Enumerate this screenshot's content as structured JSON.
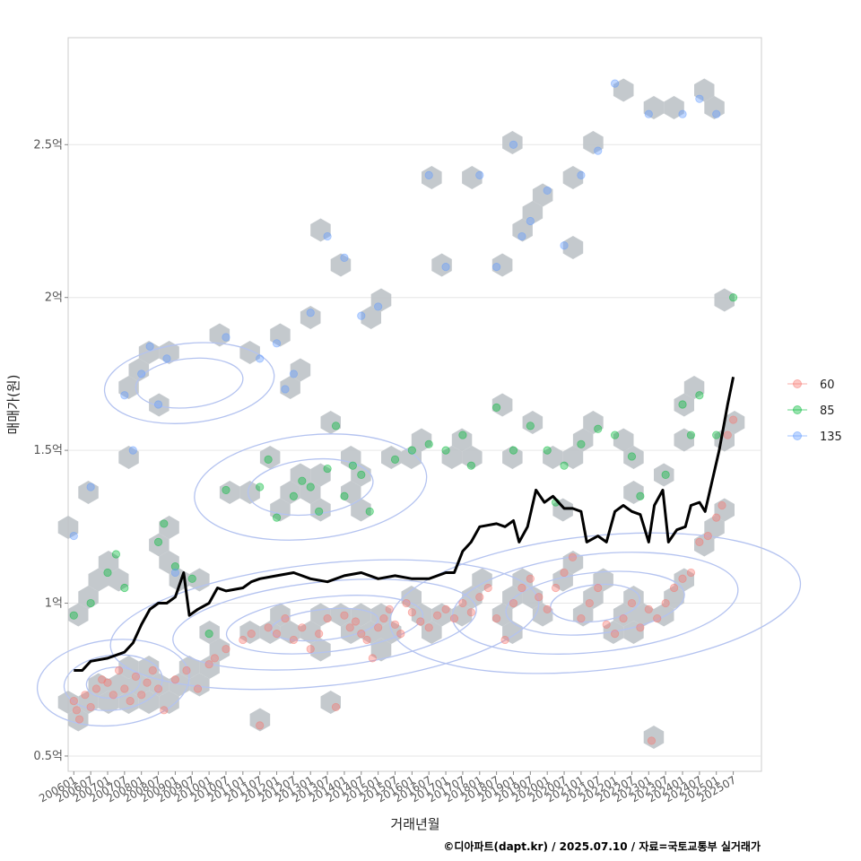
{
  "chart_data": {
    "type": "scatter",
    "title": "",
    "xlabel": "거래년월",
    "ylabel": "매매가(원)",
    "caption": "©디아파트(dapt.kr) / 2025.07.10 / 자료=국토교통부 실거래가",
    "x_range": [
      "2005-11",
      "2026-05"
    ],
    "ylim": [
      0.45,
      2.85
    ],
    "y_ticks": [
      {
        "value": 0.5,
        "label": "0.5억"
      },
      {
        "value": 1.0,
        "label": "1억"
      },
      {
        "value": 1.5,
        "label": "1.5억"
      },
      {
        "value": 2.0,
        "label": "2억"
      },
      {
        "value": 2.5,
        "label": "2.5억"
      }
    ],
    "x_ticks": [
      "200601",
      "200607",
      "200701",
      "200707",
      "200801",
      "200807",
      "200901",
      "200907",
      "201001",
      "201007",
      "201101",
      "201107",
      "201201",
      "201207",
      "201301",
      "201307",
      "201401",
      "201407",
      "201501",
      "201507",
      "201601",
      "201607",
      "201701",
      "201707",
      "201801",
      "201807",
      "201901",
      "201907",
      "202001",
      "202007",
      "202101",
      "202107",
      "202201",
      "202207",
      "202301",
      "202307",
      "202401",
      "202407",
      "202501",
      "202507"
    ],
    "grid": true,
    "legend_position": "right",
    "legend": [
      {
        "label": "60",
        "color": "#F8766D"
      },
      {
        "label": "85",
        "color": "#00BA38"
      },
      {
        "label": "135",
        "color": "#619CFF"
      }
    ],
    "hexbin_color": "#BEC3C8",
    "contour_color": "#B4C3F0",
    "trend_line": {
      "color": "#000000",
      "points": [
        [
          "2006-01",
          0.78
        ],
        [
          "2006-04",
          0.78
        ],
        [
          "2006-07",
          0.81
        ],
        [
          "2007-01",
          0.82
        ],
        [
          "2007-07",
          0.84
        ],
        [
          "2007-10",
          0.87
        ],
        [
          "2008-01",
          0.93
        ],
        [
          "2008-04",
          0.98
        ],
        [
          "2008-07",
          1.0
        ],
        [
          "2008-10",
          1.0
        ],
        [
          "2009-01",
          1.02
        ],
        [
          "2009-04",
          1.1
        ],
        [
          "2009-06",
          0.96
        ],
        [
          "2009-09",
          0.98
        ],
        [
          "2010-01",
          1.0
        ],
        [
          "2010-04",
          1.05
        ],
        [
          "2010-07",
          1.04
        ],
        [
          "2011-01",
          1.05
        ],
        [
          "2011-04",
          1.07
        ],
        [
          "2011-07",
          1.08
        ],
        [
          "2012-01",
          1.09
        ],
        [
          "2012-07",
          1.1
        ],
        [
          "2013-01",
          1.08
        ],
        [
          "2013-07",
          1.07
        ],
        [
          "2014-01",
          1.09
        ],
        [
          "2014-07",
          1.1
        ],
        [
          "2015-01",
          1.08
        ],
        [
          "2015-07",
          1.09
        ],
        [
          "2016-01",
          1.08
        ],
        [
          "2016-07",
          1.08
        ],
        [
          "2017-01",
          1.1
        ],
        [
          "2017-04",
          1.1
        ],
        [
          "2017-07",
          1.17
        ],
        [
          "2017-10",
          1.2
        ],
        [
          "2018-01",
          1.25
        ],
        [
          "2018-07",
          1.26
        ],
        [
          "2018-10",
          1.25
        ],
        [
          "2019-01",
          1.27
        ],
        [
          "2019-03",
          1.2
        ],
        [
          "2019-06",
          1.25
        ],
        [
          "2019-09",
          1.37
        ],
        [
          "2019-12",
          1.33
        ],
        [
          "2020-03",
          1.35
        ],
        [
          "2020-07",
          1.31
        ],
        [
          "2020-10",
          1.31
        ],
        [
          "2021-01",
          1.3
        ],
        [
          "2021-03",
          1.2
        ],
        [
          "2021-07",
          1.22
        ],
        [
          "2021-10",
          1.2
        ],
        [
          "2022-01",
          1.3
        ],
        [
          "2022-04",
          1.32
        ],
        [
          "2022-07",
          1.3
        ],
        [
          "2022-10",
          1.29
        ],
        [
          "2023-01",
          1.2
        ],
        [
          "2023-03",
          1.32
        ],
        [
          "2023-06",
          1.37
        ],
        [
          "2023-08",
          1.2
        ],
        [
          "2023-11",
          1.24
        ],
        [
          "2024-02",
          1.25
        ],
        [
          "2024-04",
          1.32
        ],
        [
          "2024-07",
          1.33
        ],
        [
          "2024-09",
          1.3
        ],
        [
          "2024-12",
          1.42
        ],
        [
          "2025-02",
          1.5
        ],
        [
          "2025-04",
          1.6
        ],
        [
          "2025-05",
          1.65
        ],
        [
          "2025-07",
          1.74
        ]
      ]
    },
    "series": [
      {
        "name": "60",
        "color": "#F8766D",
        "points": [
          [
            "2006-01",
            0.68
          ],
          [
            "2006-02",
            0.65
          ],
          [
            "2006-03",
            0.62
          ],
          [
            "2006-05",
            0.7
          ],
          [
            "2006-07",
            0.66
          ],
          [
            "2006-09",
            0.72
          ],
          [
            "2006-11",
            0.75
          ],
          [
            "2007-01",
            0.74
          ],
          [
            "2007-03",
            0.7
          ],
          [
            "2007-05",
            0.78
          ],
          [
            "2007-07",
            0.72
          ],
          [
            "2007-09",
            0.68
          ],
          [
            "2007-11",
            0.76
          ],
          [
            "2008-01",
            0.7
          ],
          [
            "2008-03",
            0.74
          ],
          [
            "2008-05",
            0.78
          ],
          [
            "2008-07",
            0.72
          ],
          [
            "2008-09",
            0.65
          ],
          [
            "2009-01",
            0.75
          ],
          [
            "2009-05",
            0.78
          ],
          [
            "2009-09",
            0.72
          ],
          [
            "2010-01",
            0.8
          ],
          [
            "2010-03",
            0.82
          ],
          [
            "2010-07",
            0.85
          ],
          [
            "2011-01",
            0.88
          ],
          [
            "2011-04",
            0.9
          ],
          [
            "2011-07",
            0.6
          ],
          [
            "2011-10",
            0.92
          ],
          [
            "2012-01",
            0.9
          ],
          [
            "2012-04",
            0.95
          ],
          [
            "2012-07",
            0.88
          ],
          [
            "2012-10",
            0.92
          ],
          [
            "2013-01",
            0.85
          ],
          [
            "2013-04",
            0.9
          ],
          [
            "2013-07",
            0.95
          ],
          [
            "2013-10",
            0.66
          ],
          [
            "2014-01",
            0.96
          ],
          [
            "2014-03",
            0.92
          ],
          [
            "2014-05",
            0.94
          ],
          [
            "2014-07",
            0.9
          ],
          [
            "2014-09",
            0.88
          ],
          [
            "2014-11",
            0.82
          ],
          [
            "2015-01",
            0.92
          ],
          [
            "2015-03",
            0.95
          ],
          [
            "2015-05",
            0.98
          ],
          [
            "2015-07",
            0.93
          ],
          [
            "2015-09",
            0.9
          ],
          [
            "2015-11",
            1.0
          ],
          [
            "2016-01",
            0.97
          ],
          [
            "2016-04",
            0.94
          ],
          [
            "2016-07",
            0.92
          ],
          [
            "2016-10",
            0.96
          ],
          [
            "2017-01",
            0.98
          ],
          [
            "2017-04",
            0.95
          ],
          [
            "2017-07",
            1.0
          ],
          [
            "2017-10",
            0.97
          ],
          [
            "2018-01",
            1.02
          ],
          [
            "2018-04",
            1.05
          ],
          [
            "2018-07",
            0.95
          ],
          [
            "2018-10",
            0.88
          ],
          [
            "2019-01",
            1.0
          ],
          [
            "2019-04",
            1.05
          ],
          [
            "2019-07",
            1.08
          ],
          [
            "2019-10",
            1.02
          ],
          [
            "2020-01",
            0.98
          ],
          [
            "2020-04",
            1.05
          ],
          [
            "2020-07",
            1.1
          ],
          [
            "2020-10",
            1.15
          ],
          [
            "2021-01",
            0.95
          ],
          [
            "2021-04",
            1.0
          ],
          [
            "2021-07",
            1.05
          ],
          [
            "2021-10",
            0.93
          ],
          [
            "2022-01",
            0.9
          ],
          [
            "2022-04",
            0.95
          ],
          [
            "2022-07",
            1.0
          ],
          [
            "2022-10",
            0.92
          ],
          [
            "2023-01",
            0.98
          ],
          [
            "2023-04",
            0.95
          ],
          [
            "2023-07",
            1.0
          ],
          [
            "2023-10",
            1.05
          ],
          [
            "2024-01",
            1.08
          ],
          [
            "2024-04",
            1.1
          ],
          [
            "2024-07",
            1.2
          ],
          [
            "2024-10",
            1.22
          ],
          [
            "2025-01",
            1.28
          ],
          [
            "2025-03",
            1.32
          ],
          [
            "2025-05",
            1.55
          ],
          [
            "2025-07",
            1.6
          ],
          [
            "2023-02",
            0.55
          ]
        ]
      },
      {
        "name": "85",
        "color": "#00BA38",
        "points": [
          [
            "2006-01",
            0.96
          ],
          [
            "2006-07",
            1.0
          ],
          [
            "2007-01",
            1.1
          ],
          [
            "2007-04",
            1.16
          ],
          [
            "2007-07",
            1.05
          ],
          [
            "2008-07",
            1.2
          ],
          [
            "2008-09",
            1.26
          ],
          [
            "2009-01",
            1.12
          ],
          [
            "2009-07",
            1.08
          ],
          [
            "2010-01",
            0.9
          ],
          [
            "2010-07",
            1.37
          ],
          [
            "2011-07",
            1.38
          ],
          [
            "2011-10",
            1.47
          ],
          [
            "2012-01",
            1.28
          ],
          [
            "2012-07",
            1.35
          ],
          [
            "2012-10",
            1.4
          ],
          [
            "2013-01",
            1.38
          ],
          [
            "2013-04",
            1.3
          ],
          [
            "2013-07",
            1.44
          ],
          [
            "2013-10",
            1.58
          ],
          [
            "2014-01",
            1.35
          ],
          [
            "2014-04",
            1.45
          ],
          [
            "2014-07",
            1.42
          ],
          [
            "2014-10",
            1.3
          ],
          [
            "2015-07",
            1.47
          ],
          [
            "2016-01",
            1.5
          ],
          [
            "2016-07",
            1.52
          ],
          [
            "2017-01",
            1.5
          ],
          [
            "2017-07",
            1.55
          ],
          [
            "2017-10",
            1.45
          ],
          [
            "2018-07",
            1.64
          ],
          [
            "2019-01",
            1.5
          ],
          [
            "2019-07",
            1.58
          ],
          [
            "2020-01",
            1.5
          ],
          [
            "2020-04",
            1.33
          ],
          [
            "2020-07",
            1.45
          ],
          [
            "2021-01",
            1.52
          ],
          [
            "2021-07",
            1.57
          ],
          [
            "2022-01",
            1.55
          ],
          [
            "2022-07",
            1.48
          ],
          [
            "2022-10",
            1.35
          ],
          [
            "2023-07",
            1.42
          ],
          [
            "2024-01",
            1.65
          ],
          [
            "2024-04",
            1.55
          ],
          [
            "2024-07",
            1.68
          ],
          [
            "2025-01",
            1.55
          ],
          [
            "2025-07",
            2.0
          ]
        ]
      },
      {
        "name": "135",
        "color": "#619CFF",
        "points": [
          [
            "2006-01",
            1.22
          ],
          [
            "2006-07",
            1.38
          ],
          [
            "2007-07",
            1.68
          ],
          [
            "2007-10",
            1.5
          ],
          [
            "2008-01",
            1.75
          ],
          [
            "2008-04",
            1.84
          ],
          [
            "2008-07",
            1.65
          ],
          [
            "2008-10",
            1.8
          ],
          [
            "2009-01",
            1.1
          ],
          [
            "2010-07",
            1.87
          ],
          [
            "2011-07",
            1.8
          ],
          [
            "2012-01",
            1.85
          ],
          [
            "2012-04",
            1.7
          ],
          [
            "2012-07",
            1.75
          ],
          [
            "2013-01",
            1.95
          ],
          [
            "2013-07",
            2.2
          ],
          [
            "2014-01",
            2.13
          ],
          [
            "2014-07",
            1.94
          ],
          [
            "2015-01",
            1.97
          ],
          [
            "2016-07",
            2.4
          ],
          [
            "2017-01",
            2.1
          ],
          [
            "2018-01",
            2.4
          ],
          [
            "2018-07",
            2.1
          ],
          [
            "2019-01",
            2.5
          ],
          [
            "2019-04",
            2.2
          ],
          [
            "2019-07",
            2.25
          ],
          [
            "2020-01",
            2.35
          ],
          [
            "2020-07",
            2.17
          ],
          [
            "2021-01",
            2.4
          ],
          [
            "2021-07",
            2.48
          ],
          [
            "2022-01",
            2.7
          ],
          [
            "2023-01",
            2.6
          ],
          [
            "2024-01",
            2.6
          ],
          [
            "2024-07",
            2.65
          ],
          [
            "2025-01",
            2.6
          ]
        ]
      }
    ]
  }
}
